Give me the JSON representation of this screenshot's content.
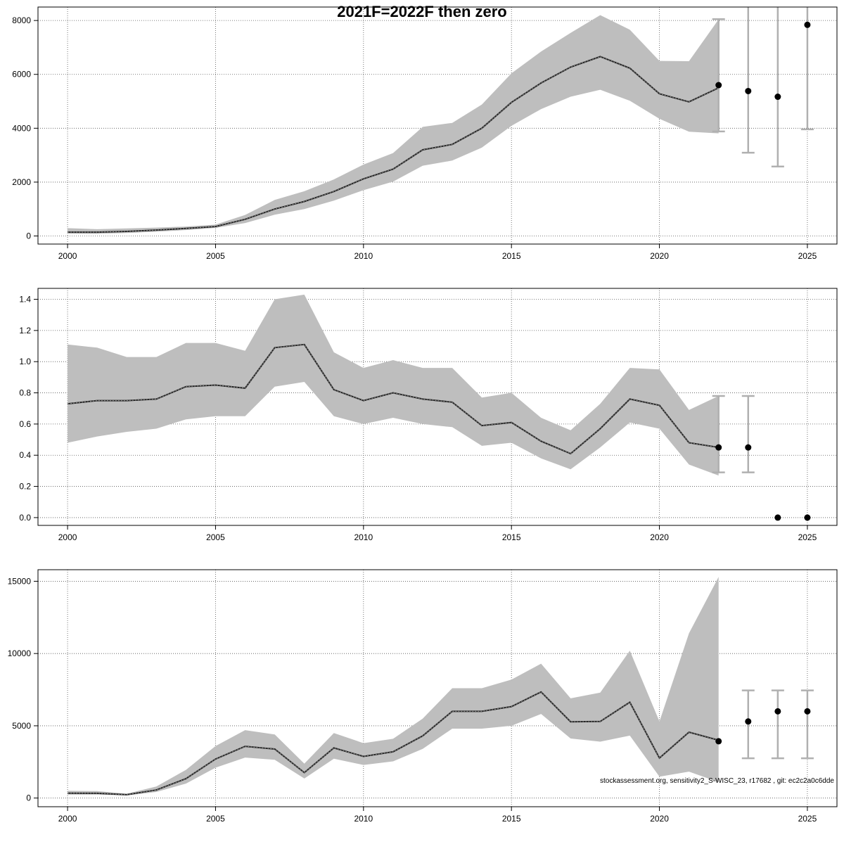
{
  "title": "2021F=2022F then zero",
  "footnote": "stockassessment.org, sensitivity2_S-WISC_23, r17682 , git: ec2c2a0c6dde",
  "colors": {
    "band": "#bebebe",
    "line": "#222222",
    "error_bar": "#b0b0b0",
    "point": "#000000",
    "grid": "#555555"
  },
  "chart_data": [
    {
      "type": "area",
      "xlim": [
        1999,
        2026
      ],
      "ylim": [
        -300,
        8500
      ],
      "x_ticks": [
        2000,
        2005,
        2010,
        2015,
        2020,
        2025
      ],
      "y_ticks": [
        0,
        2000,
        4000,
        6000,
        8000
      ],
      "xlabel": "",
      "ylabel": "",
      "grid": true,
      "series": [
        {
          "x": [
            2000,
            2001,
            2002,
            2003,
            2004,
            2005,
            2006,
            2007,
            2008,
            2009,
            2010,
            2011,
            2012,
            2013,
            2014,
            2015,
            2016,
            2017,
            2018,
            2019,
            2020,
            2021,
            2022
          ],
          "estimate": [
            140,
            140,
            170,
            220,
            280,
            350,
            620,
            1000,
            1280,
            1650,
            2120,
            2480,
            3200,
            3400,
            4000,
            4960,
            5680,
            6270,
            6660,
            6230,
            5280,
            4980,
            5500
          ],
          "lower": [
            90,
            80,
            110,
            160,
            220,
            300,
            480,
            790,
            1000,
            1310,
            1700,
            2020,
            2610,
            2800,
            3280,
            4090,
            4710,
            5170,
            5430,
            5020,
            4350,
            3870,
            3810
          ],
          "upper": [
            290,
            250,
            280,
            310,
            350,
            420,
            780,
            1340,
            1660,
            2100,
            2650,
            3080,
            4050,
            4200,
            4880,
            6040,
            6850,
            7540,
            8200,
            7660,
            6500,
            6490,
            8040
          ]
        }
      ],
      "forecast": [
        {
          "x": 2022,
          "value": 5600,
          "low": 3880,
          "high": 8050
        },
        {
          "x": 2023,
          "value": 5380,
          "low": 3090,
          "high": 8600
        },
        {
          "x": 2024,
          "value": 5170,
          "low": 2580,
          "high": 8600
        },
        {
          "x": 2025,
          "value": 7840,
          "low": 3960,
          "high": 8600
        }
      ]
    },
    {
      "type": "area",
      "xlim": [
        1999,
        2026
      ],
      "ylim": [
        -0.05,
        1.47
      ],
      "x_ticks": [
        2000,
        2005,
        2010,
        2015,
        2020,
        2025
      ],
      "y_ticks": [
        0.0,
        0.2,
        0.4,
        0.6,
        0.8,
        1.0,
        1.2,
        1.4
      ],
      "y_tick_labels": [
        "0.0",
        "0.2",
        "0.4",
        "0.6",
        "0.8",
        "1.0",
        "1.2",
        "1.4"
      ],
      "xlabel": "",
      "ylabel": "",
      "grid": true,
      "series": [
        {
          "x": [
            2000,
            2001,
            2002,
            2003,
            2004,
            2005,
            2006,
            2007,
            2008,
            2009,
            2010,
            2011,
            2012,
            2013,
            2014,
            2015,
            2016,
            2017,
            2018,
            2019,
            2020,
            2021,
            2022
          ],
          "estimate": [
            0.73,
            0.75,
            0.75,
            0.76,
            0.84,
            0.85,
            0.83,
            1.09,
            1.11,
            0.82,
            0.75,
            0.8,
            0.76,
            0.74,
            0.59,
            0.61,
            0.49,
            0.41,
            0.57,
            0.76,
            0.72,
            0.48,
            0.45
          ],
          "lower": [
            0.48,
            0.52,
            0.55,
            0.57,
            0.63,
            0.65,
            0.65,
            0.84,
            0.87,
            0.65,
            0.6,
            0.64,
            0.6,
            0.58,
            0.46,
            0.48,
            0.38,
            0.31,
            0.45,
            0.61,
            0.57,
            0.34,
            0.27
          ],
          "upper": [
            1.11,
            1.09,
            1.03,
            1.03,
            1.12,
            1.12,
            1.07,
            1.4,
            1.43,
            1.06,
            0.96,
            1.01,
            0.96,
            0.96,
            0.77,
            0.8,
            0.64,
            0.56,
            0.73,
            0.96,
            0.95,
            0.69,
            0.78
          ]
        }
      ],
      "forecast": [
        {
          "x": 2022,
          "value": 0.45,
          "low": 0.29,
          "high": 0.78
        },
        {
          "x": 2023,
          "value": 0.45,
          "low": 0.29,
          "high": 0.78
        },
        {
          "x": 2024,
          "value": 0.0
        },
        {
          "x": 2025,
          "value": 0.0
        }
      ]
    },
    {
      "type": "area",
      "xlim": [
        1999,
        2026
      ],
      "ylim": [
        -600,
        15800
      ],
      "x_ticks": [
        2000,
        2005,
        2010,
        2015,
        2020,
        2025
      ],
      "y_ticks": [
        0,
        5000,
        10000,
        15000
      ],
      "xlabel": "",
      "ylabel": "",
      "grid": true,
      "series": [
        {
          "x": [
            2000,
            2001,
            2002,
            2003,
            2004,
            2005,
            2006,
            2007,
            2008,
            2009,
            2010,
            2011,
            2012,
            2013,
            2014,
            2015,
            2016,
            2017,
            2018,
            2019,
            2020,
            2021,
            2022
          ],
          "estimate": [
            340,
            330,
            230,
            560,
            1340,
            2700,
            3580,
            3390,
            1760,
            3470,
            2880,
            3200,
            4300,
            6000,
            6000,
            6330,
            7340,
            5280,
            5300,
            6630,
            2770,
            4560,
            4000
          ],
          "lower": [
            240,
            240,
            180,
            420,
            1000,
            2100,
            2800,
            2650,
            1350,
            2720,
            2290,
            2540,
            3400,
            4800,
            4800,
            5000,
            5820,
            4120,
            3900,
            4320,
            1480,
            1830,
            1100
          ],
          "upper": [
            500,
            480,
            300,
            800,
            1950,
            3600,
            4700,
            4400,
            2380,
            4500,
            3800,
            4100,
            5500,
            7600,
            7600,
            8200,
            9300,
            6900,
            7300,
            10200,
            5300,
            11400,
            15300
          ]
        }
      ],
      "forecast": [
        {
          "x": 2022,
          "value": 3930
        },
        {
          "x": 2023,
          "value": 5300,
          "low": 2750,
          "high": 7450
        },
        {
          "x": 2024,
          "value": 6000,
          "low": 2750,
          "high": 7450
        },
        {
          "x": 2025,
          "value": 6000,
          "low": 2750,
          "high": 7450
        }
      ]
    }
  ]
}
